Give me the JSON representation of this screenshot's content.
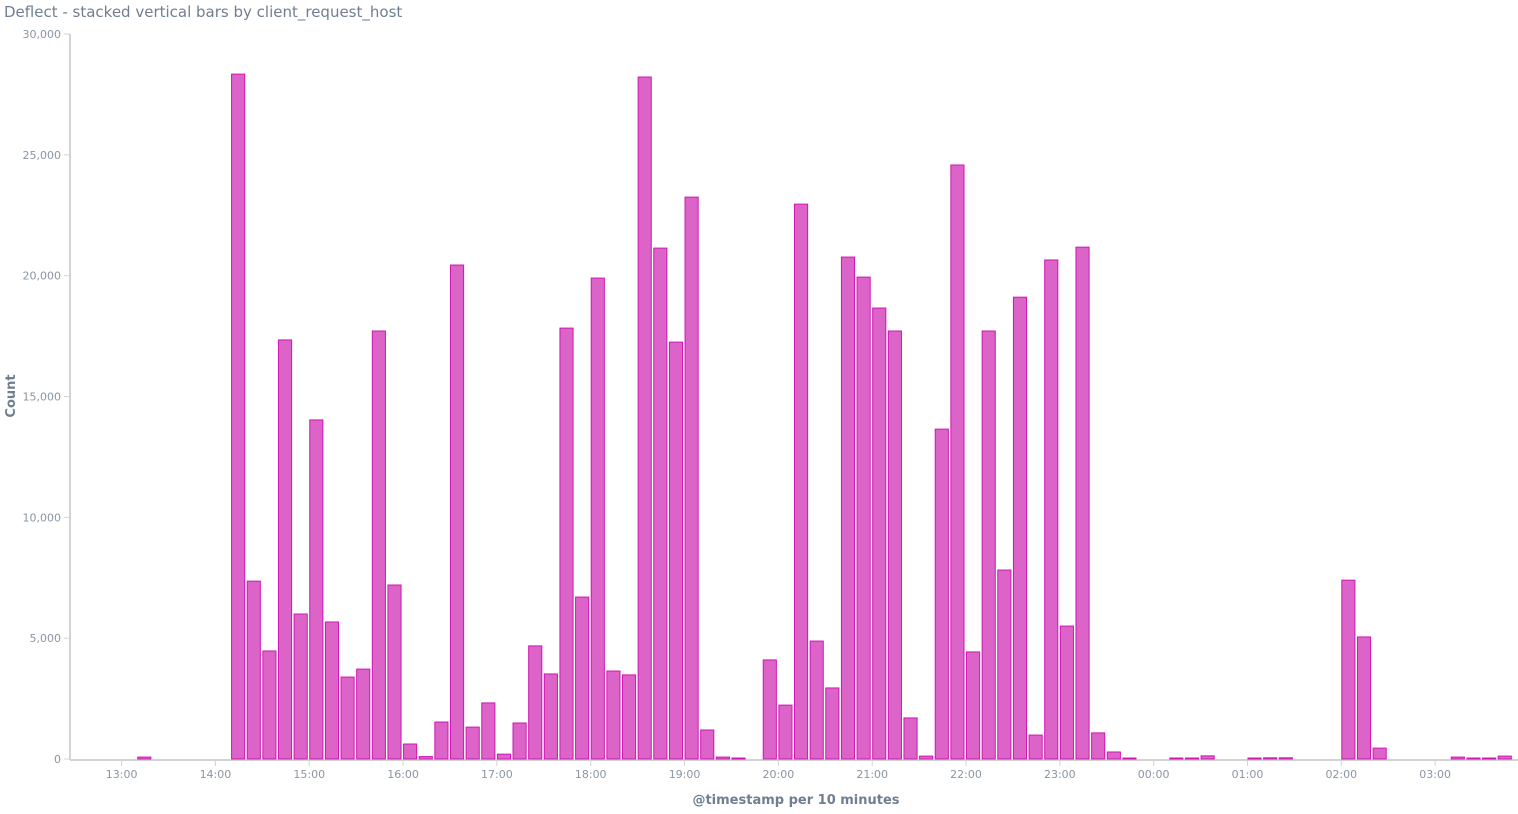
{
  "chart_data": {
    "type": "bar",
    "title": "Deflect - stacked vertical bars by client_request_host",
    "xlabel": "@timestamp per 10 minutes",
    "ylabel": "Count",
    "ylim": [
      0,
      30000
    ],
    "xlim": [
      "12:27",
      "03:53"
    ],
    "y_ticks": [
      "0",
      "5,000",
      "10,000",
      "15,000",
      "20,000",
      "25,000",
      "30,000"
    ],
    "x_ticks": [
      "13:00",
      "14:00",
      "15:00",
      "16:00",
      "17:00",
      "18:00",
      "19:00",
      "20:00",
      "21:00",
      "22:00",
      "23:00",
      "00:00",
      "01:00",
      "02:00",
      "03:00"
    ],
    "grid": false,
    "legend": "none",
    "color": "#dc64c8",
    "interval_minutes": 10,
    "series": [
      {
        "x": [
          "13:10",
          "14:10",
          "14:20",
          "14:30",
          "14:40",
          "14:50",
          "15:00",
          "15:10",
          "15:20",
          "15:30",
          "15:40",
          "15:50",
          "16:00",
          "16:10",
          "16:20",
          "16:30",
          "16:40",
          "16:50",
          "17:00",
          "17:10",
          "17:20",
          "17:30",
          "17:40",
          "17:50",
          "18:00",
          "18:10",
          "18:20",
          "18:30",
          "18:40",
          "18:50",
          "19:00",
          "19:10",
          "19:20",
          "19:30",
          "19:50",
          "20:00",
          "20:10",
          "20:20",
          "20:30",
          "20:40",
          "20:50",
          "21:00",
          "21:10",
          "21:20",
          "21:30",
          "21:40",
          "21:50",
          "22:00",
          "22:10",
          "22:20",
          "22:30",
          "22:40",
          "22:50",
          "23:00",
          "23:10",
          "23:20",
          "23:30",
          "23:40",
          "00:10",
          "00:20",
          "00:30",
          "01:00",
          "01:10",
          "01:20",
          "02:00",
          "02:10",
          "02:20",
          "03:10",
          "03:20",
          "03:30",
          "03:40"
        ],
        "values": [
          80,
          28340,
          7360,
          4470,
          17340,
          6000,
          14030,
          5670,
          3390,
          3720,
          17710,
          7200,
          620,
          100,
          1530,
          20440,
          1320,
          2320,
          200,
          1490,
          4680,
          3520,
          17830,
          6700,
          19900,
          3640,
          3480,
          28220,
          21140,
          17250,
          23250,
          1200,
          80,
          40,
          4100,
          2230,
          22960,
          4880,
          2940,
          20770,
          19940,
          18660,
          17710,
          1700,
          120,
          13650,
          24580,
          4430,
          17710,
          7820,
          19110,
          990,
          20650,
          5500,
          21180,
          1080,
          290,
          40,
          40,
          40,
          130,
          40,
          50,
          50,
          7400,
          5050,
          450,
          80,
          40,
          40,
          120
        ]
      }
    ]
  }
}
